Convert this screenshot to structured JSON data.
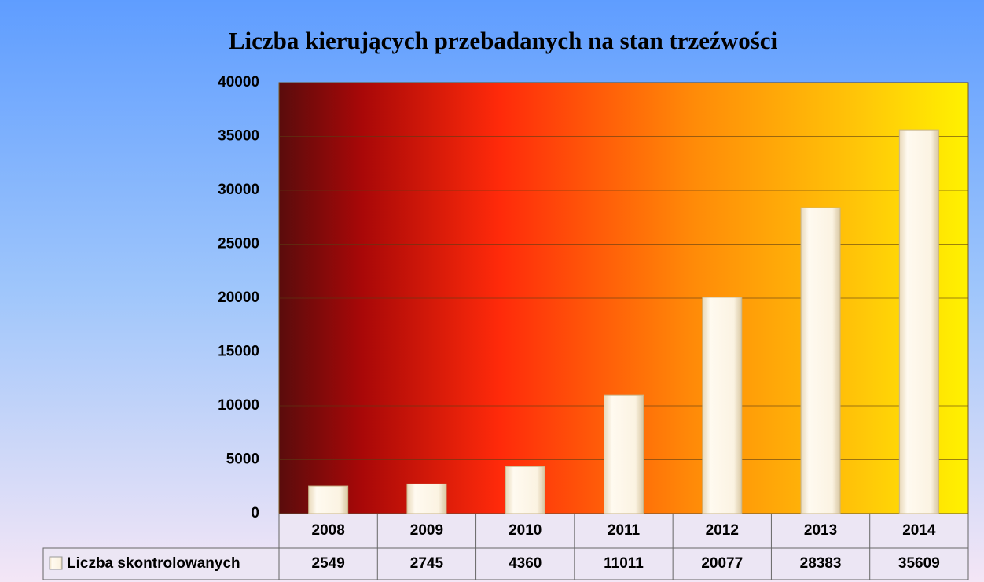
{
  "chart_data": {
    "type": "bar",
    "title": "Liczba kierujących przebadanych na stan trzeźwości",
    "categories": [
      "2008",
      "2009",
      "2010",
      "2011",
      "2012",
      "2013",
      "2014"
    ],
    "series": [
      {
        "name": "Liczba skontrolowanych",
        "color": "#f8f0dc",
        "values": [
          2549,
          2745,
          4360,
          11011,
          20077,
          28383,
          35609
        ]
      }
    ],
    "ylim": [
      0,
      40000
    ],
    "yticks": [
      0,
      5000,
      10000,
      15000,
      20000,
      25000,
      30000,
      35000,
      40000
    ],
    "grid": true
  }
}
